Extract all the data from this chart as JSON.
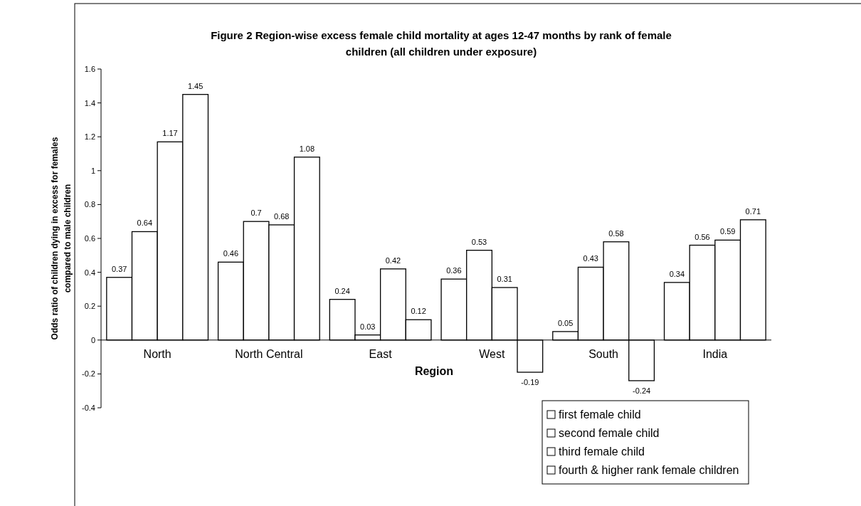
{
  "chart_data": {
    "type": "bar",
    "title": "Figure 2 Region-wise excess female child mortality at ages 12-47 months by rank of female children (all children under exposure)",
    "xlabel": "Region",
    "ylabel": "Odds ratio of children dying in excess for females compared to male children",
    "categories": [
      "North",
      "North Central",
      "East",
      "West",
      "South",
      "India"
    ],
    "series": [
      {
        "name": "first female child",
        "color": "#ffffff",
        "values": [
          0.37,
          0.46,
          0.24,
          0.36,
          0.05,
          0.34
        ]
      },
      {
        "name": "second female child",
        "color": "#ffffff",
        "values": [
          0.64,
          0.7,
          0.03,
          0.53,
          0.43,
          0.56
        ]
      },
      {
        "name": "third female child",
        "color": "#ffffff",
        "values": [
          1.17,
          0.68,
          0.42,
          0.31,
          0.58,
          0.59
        ]
      },
      {
        "name": "fourth & higher rank female children",
        "color": "#ffffff",
        "values": [
          1.45,
          1.08,
          0.12,
          -0.19,
          -0.24,
          0.71
        ]
      }
    ],
    "ylim": [
      -0.4,
      1.6
    ],
    "yticks": [
      -0.4,
      -0.2,
      0,
      0.2,
      0.4,
      0.6,
      0.8,
      1,
      1.2,
      1.4,
      1.6
    ],
    "data_labels": true,
    "grid": false,
    "legend": "bottom right"
  }
}
